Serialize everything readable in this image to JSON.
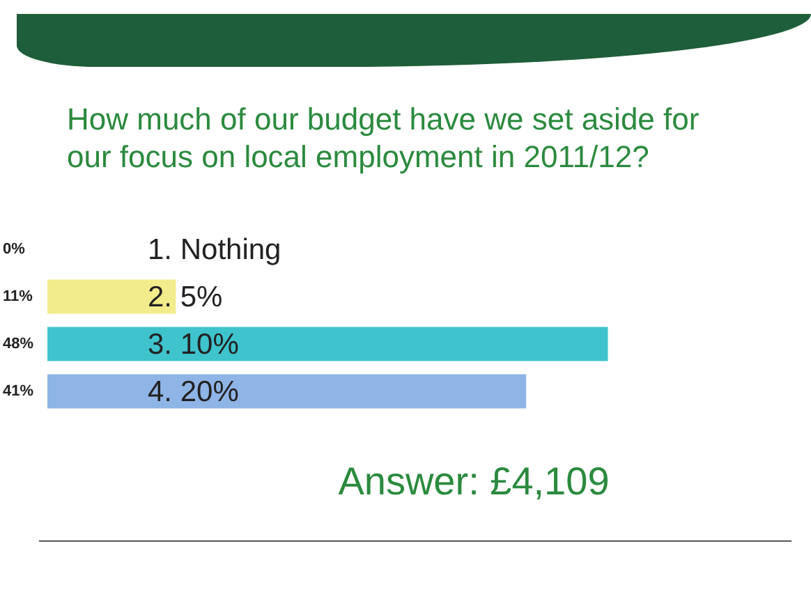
{
  "chart_data": {
    "type": "bar",
    "orientation": "horizontal",
    "title": "How much of our budget have we set aside for our focus on local employment in 2011/12?",
    "categories": [
      "1. Nothing",
      "2. 5%",
      "3. 10%",
      "4. 20%"
    ],
    "values": [
      0,
      11,
      48,
      41
    ],
    "colors": [
      "#f2ec8c",
      "#f2ec8c",
      "#3fc3cc",
      "#8fb4e6"
    ],
    "value_labels": [
      "0%",
      "11%",
      "48%",
      "41%"
    ],
    "annotations": [
      "Answer: £4,109"
    ]
  }
}
